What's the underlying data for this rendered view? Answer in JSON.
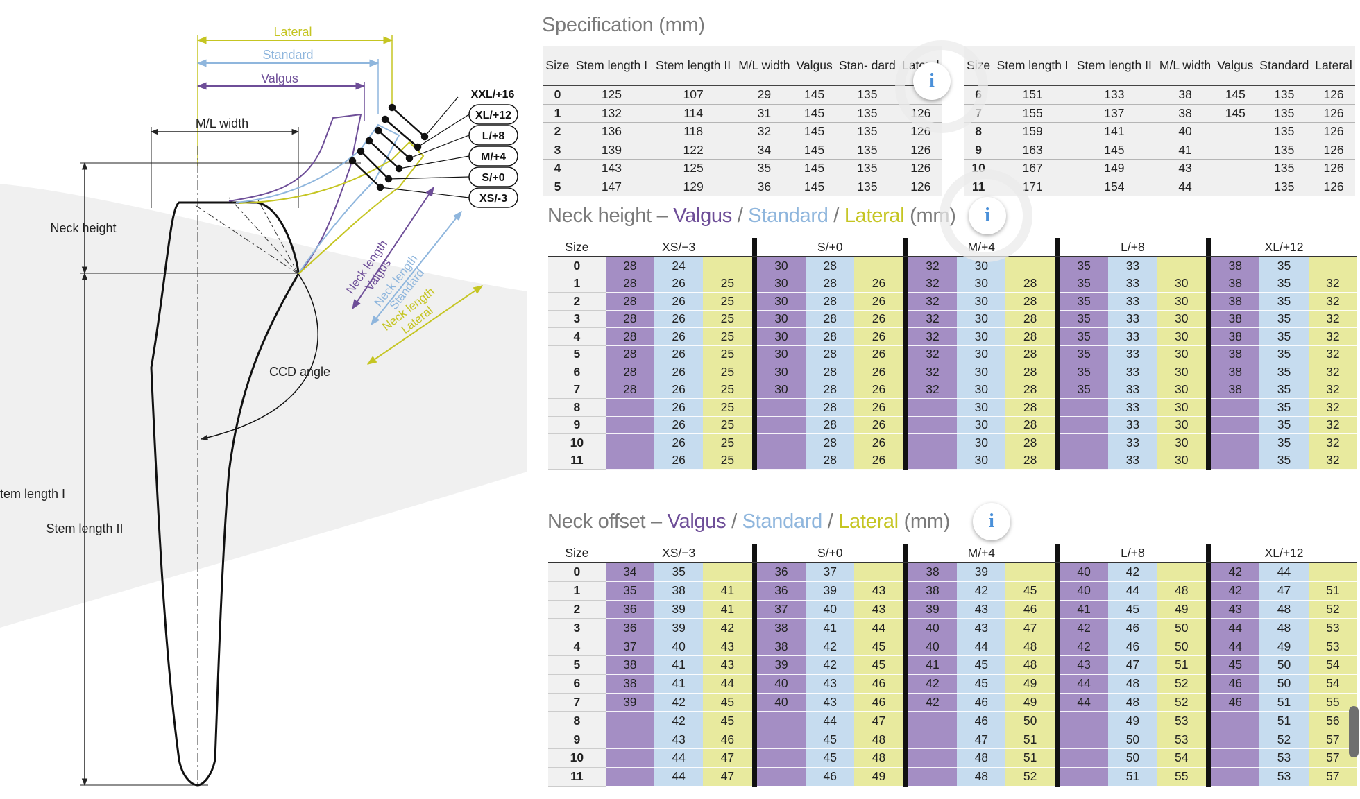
{
  "drawing": {
    "lateral": "Lateral",
    "standard": "Standard",
    "valgus": "Valgus",
    "ml_width": "M/L width",
    "neck_height": "Neck height",
    "sizes": [
      "XXL/+16",
      "XL/+12",
      "L/+8",
      "M/+4",
      "S/+0",
      "XS/-3"
    ],
    "neck_length_valgus": [
      "Neck length",
      "Valgus"
    ],
    "neck_length_standard": [
      "Neck length",
      "Standard"
    ],
    "neck_length_lateral": [
      "Neck length",
      "Lateral"
    ],
    "ccd_angle": "CCD angle",
    "stem_length_1": "tem length I",
    "stem_length_2": "Stem length II"
  },
  "colors": {
    "valgus": "#6e4e98",
    "standard": "#8fb6dd",
    "lateral": "#c5c522"
  },
  "spec": {
    "title": "Specification (mm)",
    "headers": [
      "Size",
      "Stem length I",
      "Stem length II",
      "M/L width",
      "Valgus",
      "Stan- dard",
      "Lateral"
    ],
    "headers_right": [
      "Size",
      "Stem length I",
      "Stem length II",
      "M/L width",
      "Valgus",
      "Standard",
      "Lateral"
    ],
    "left_rows": [
      [
        "0",
        "125",
        "107",
        "29",
        "145",
        "135",
        ""
      ],
      [
        "1",
        "132",
        "114",
        "31",
        "145",
        "135",
        "126"
      ],
      [
        "2",
        "136",
        "118",
        "32",
        "145",
        "135",
        "126"
      ],
      [
        "3",
        "139",
        "122",
        "34",
        "145",
        "135",
        "126"
      ],
      [
        "4",
        "143",
        "125",
        "35",
        "145",
        "135",
        "126"
      ],
      [
        "5",
        "147",
        "129",
        "36",
        "145",
        "135",
        "126"
      ]
    ],
    "right_rows": [
      [
        "6",
        "151",
        "133",
        "38",
        "145",
        "135",
        "126"
      ],
      [
        "7",
        "155",
        "137",
        "38",
        "145",
        "135",
        "126"
      ],
      [
        "8",
        "159",
        "141",
        "40",
        "",
        "135",
        "126"
      ],
      [
        "9",
        "163",
        "145",
        "41",
        "",
        "135",
        "126"
      ],
      [
        "10",
        "167",
        "149",
        "43",
        "",
        "135",
        "126"
      ],
      [
        "11",
        "171",
        "154",
        "44",
        "",
        "135",
        "126"
      ]
    ]
  },
  "neck_height": {
    "title_prefix": "Neck height –",
    "title_valgus": "Valgus",
    "title_standard": "Standard",
    "title_lateral": "Lateral",
    "title_unit": "(mm)",
    "slash": "/",
    "size_label": "Size",
    "groups": [
      "XS/−3",
      "S/+0",
      "M/+4",
      "L/+8",
      "XL/+12"
    ],
    "rows": [
      {
        "size": "0",
        "vals": [
          [
            "28",
            "24",
            ""
          ],
          [
            "30",
            "28",
            ""
          ],
          [
            "32",
            "30",
            ""
          ],
          [
            "35",
            "33",
            ""
          ],
          [
            "38",
            "35",
            ""
          ]
        ]
      },
      {
        "size": "1",
        "vals": [
          [
            "28",
            "26",
            "25"
          ],
          [
            "30",
            "28",
            "26"
          ],
          [
            "32",
            "30",
            "28"
          ],
          [
            "35",
            "33",
            "30"
          ],
          [
            "38",
            "35",
            "32"
          ]
        ]
      },
      {
        "size": "2",
        "vals": [
          [
            "28",
            "26",
            "25"
          ],
          [
            "30",
            "28",
            "26"
          ],
          [
            "32",
            "30",
            "28"
          ],
          [
            "35",
            "33",
            "30"
          ],
          [
            "38",
            "35",
            "32"
          ]
        ]
      },
      {
        "size": "3",
        "vals": [
          [
            "28",
            "26",
            "25"
          ],
          [
            "30",
            "28",
            "26"
          ],
          [
            "32",
            "30",
            "28"
          ],
          [
            "35",
            "33",
            "30"
          ],
          [
            "38",
            "35",
            "32"
          ]
        ]
      },
      {
        "size": "4",
        "vals": [
          [
            "28",
            "26",
            "25"
          ],
          [
            "30",
            "28",
            "26"
          ],
          [
            "32",
            "30",
            "28"
          ],
          [
            "35",
            "33",
            "30"
          ],
          [
            "38",
            "35",
            "32"
          ]
        ]
      },
      {
        "size": "5",
        "vals": [
          [
            "28",
            "26",
            "25"
          ],
          [
            "30",
            "28",
            "26"
          ],
          [
            "32",
            "30",
            "28"
          ],
          [
            "35",
            "33",
            "30"
          ],
          [
            "38",
            "35",
            "32"
          ]
        ]
      },
      {
        "size": "6",
        "vals": [
          [
            "28",
            "26",
            "25"
          ],
          [
            "30",
            "28",
            "26"
          ],
          [
            "32",
            "30",
            "28"
          ],
          [
            "35",
            "33",
            "30"
          ],
          [
            "38",
            "35",
            "32"
          ]
        ]
      },
      {
        "size": "7",
        "vals": [
          [
            "28",
            "26",
            "25"
          ],
          [
            "30",
            "28",
            "26"
          ],
          [
            "32",
            "30",
            "28"
          ],
          [
            "35",
            "33",
            "30"
          ],
          [
            "38",
            "35",
            "32"
          ]
        ]
      },
      {
        "size": "8",
        "vals": [
          [
            "",
            "26",
            "25"
          ],
          [
            "",
            "28",
            "26"
          ],
          [
            "",
            "30",
            "28"
          ],
          [
            "",
            "33",
            "30"
          ],
          [
            "",
            "35",
            "32"
          ]
        ]
      },
      {
        "size": "9",
        "vals": [
          [
            "",
            "26",
            "25"
          ],
          [
            "",
            "28",
            "26"
          ],
          [
            "",
            "30",
            "28"
          ],
          [
            "",
            "33",
            "30"
          ],
          [
            "",
            "35",
            "32"
          ]
        ]
      },
      {
        "size": "10",
        "vals": [
          [
            "",
            "26",
            "25"
          ],
          [
            "",
            "28",
            "26"
          ],
          [
            "",
            "30",
            "28"
          ],
          [
            "",
            "33",
            "30"
          ],
          [
            "",
            "35",
            "32"
          ]
        ]
      },
      {
        "size": "11",
        "vals": [
          [
            "",
            "26",
            "25"
          ],
          [
            "",
            "28",
            "26"
          ],
          [
            "",
            "30",
            "28"
          ],
          [
            "",
            "33",
            "30"
          ],
          [
            "",
            "35",
            "32"
          ]
        ]
      }
    ]
  },
  "neck_offset": {
    "title_prefix": "Neck offset –",
    "title_valgus": "Valgus",
    "title_standard": "Standard",
    "title_lateral": "Lateral",
    "title_unit": "(mm)",
    "slash": "/",
    "size_label": "Size",
    "groups": [
      "XS/−3",
      "S/+0",
      "M/+4",
      "L/+8",
      "XL/+12"
    ],
    "rows": [
      {
        "size": "0",
        "vals": [
          [
            "34",
            "35",
            ""
          ],
          [
            "36",
            "37",
            ""
          ],
          [
            "38",
            "39",
            ""
          ],
          [
            "40",
            "42",
            ""
          ],
          [
            "42",
            "44",
            ""
          ]
        ]
      },
      {
        "size": "1",
        "vals": [
          [
            "35",
            "38",
            "41"
          ],
          [
            "36",
            "39",
            "43"
          ],
          [
            "38",
            "42",
            "45"
          ],
          [
            "40",
            "44",
            "48"
          ],
          [
            "42",
            "47",
            "51"
          ]
        ]
      },
      {
        "size": "2",
        "vals": [
          [
            "36",
            "39",
            "41"
          ],
          [
            "37",
            "40",
            "43"
          ],
          [
            "39",
            "43",
            "46"
          ],
          [
            "41",
            "45",
            "49"
          ],
          [
            "43",
            "48",
            "52"
          ]
        ]
      },
      {
        "size": "3",
        "vals": [
          [
            "36",
            "39",
            "42"
          ],
          [
            "38",
            "41",
            "44"
          ],
          [
            "40",
            "43",
            "47"
          ],
          [
            "42",
            "46",
            "50"
          ],
          [
            "44",
            "48",
            "53"
          ]
        ]
      },
      {
        "size": "4",
        "vals": [
          [
            "37",
            "40",
            "43"
          ],
          [
            "38",
            "42",
            "45"
          ],
          [
            "40",
            "44",
            "48"
          ],
          [
            "42",
            "46",
            "50"
          ],
          [
            "44",
            "49",
            "53"
          ]
        ]
      },
      {
        "size": "5",
        "vals": [
          [
            "38",
            "41",
            "43"
          ],
          [
            "39",
            "42",
            "45"
          ],
          [
            "41",
            "45",
            "48"
          ],
          [
            "43",
            "47",
            "51"
          ],
          [
            "45",
            "50",
            "54"
          ]
        ]
      },
      {
        "size": "6",
        "vals": [
          [
            "38",
            "41",
            "44"
          ],
          [
            "40",
            "43",
            "46"
          ],
          [
            "42",
            "45",
            "49"
          ],
          [
            "44",
            "48",
            "52"
          ],
          [
            "46",
            "50",
            "54"
          ]
        ]
      },
      {
        "size": "7",
        "vals": [
          [
            "39",
            "42",
            "45"
          ],
          [
            "40",
            "43",
            "46"
          ],
          [
            "42",
            "46",
            "49"
          ],
          [
            "44",
            "48",
            "52"
          ],
          [
            "46",
            "51",
            "55"
          ]
        ]
      },
      {
        "size": "8",
        "vals": [
          [
            "",
            "42",
            "45"
          ],
          [
            "",
            "44",
            "47"
          ],
          [
            "",
            "46",
            "50"
          ],
          [
            "",
            "49",
            "53"
          ],
          [
            "",
            "51",
            "56"
          ]
        ]
      },
      {
        "size": "9",
        "vals": [
          [
            "",
            "43",
            "46"
          ],
          [
            "",
            "45",
            "48"
          ],
          [
            "",
            "47",
            "51"
          ],
          [
            "",
            "50",
            "53"
          ],
          [
            "",
            "52",
            "57"
          ]
        ]
      },
      {
        "size": "10",
        "vals": [
          [
            "",
            "44",
            "47"
          ],
          [
            "",
            "45",
            "48"
          ],
          [
            "",
            "48",
            "51"
          ],
          [
            "",
            "50",
            "54"
          ],
          [
            "",
            "53",
            "57"
          ]
        ]
      },
      {
        "size": "11",
        "vals": [
          [
            "",
            "44",
            "47"
          ],
          [
            "",
            "46",
            "49"
          ],
          [
            "",
            "48",
            "52"
          ],
          [
            "",
            "51",
            "55"
          ],
          [
            "",
            "53",
            "57"
          ]
        ]
      }
    ]
  },
  "info_icon": {
    "glyph": "i"
  }
}
